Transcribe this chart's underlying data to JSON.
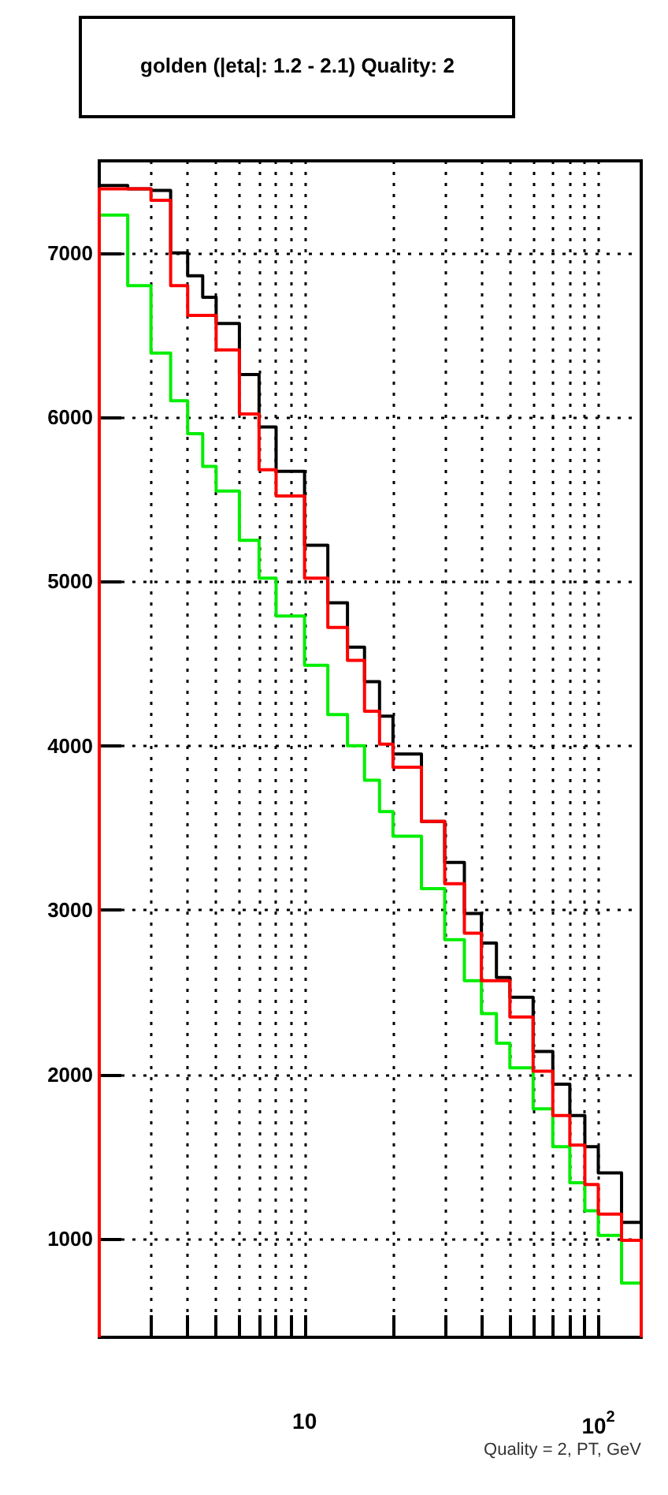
{
  "chart_data": {
    "type": "histogram",
    "title": "golden (|eta|: 1.2 - 2.1) Quality: 2",
    "xlabel": "Quality = 2, PT, GeV",
    "bins": [
      2,
      2.5,
      3,
      3.5,
      4,
      4.5,
      5,
      6,
      7,
      8,
      10,
      12,
      14,
      16,
      18,
      20,
      25,
      30,
      35,
      40,
      45,
      50,
      60,
      70,
      80,
      90,
      100,
      120,
      140
    ],
    "series": [
      {
        "color": "#000000",
        "values": [
          7410,
          7390,
          7380,
          7000,
          6860,
          6730,
          6570,
          6260,
          5940,
          5670,
          5220,
          4870,
          4600,
          4390,
          4180,
          3950,
          3540,
          3290,
          2980,
          2800,
          2590,
          2470,
          2140,
          1940,
          1750,
          1560,
          1400,
          1100
        ]
      },
      {
        "color": "#00ee00",
        "values": [
          7230,
          6800,
          6390,
          6100,
          5900,
          5700,
          5550,
          5250,
          5020,
          4790,
          4490,
          4190,
          4000,
          3790,
          3600,
          3450,
          3130,
          2820,
          2570,
          2370,
          2190,
          2040,
          1790,
          1560,
          1340,
          1170,
          1020,
          730
        ]
      },
      {
        "color": "#ff0000",
        "values": [
          7390,
          7390,
          7320,
          6800,
          6620,
          6620,
          6410,
          6020,
          5680,
          5520,
          5020,
          4720,
          4520,
          4210,
          4010,
          3870,
          3540,
          3160,
          2860,
          2570,
          2570,
          2350,
          2020,
          1750,
          1570,
          1330,
          1150,
          990
        ]
      }
    ],
    "log": "x",
    "xlim": [
      2,
      140
    ],
    "ylim": [
      400,
      7560
    ],
    "xticks": [
      {
        "value": 3,
        "label": null
      },
      {
        "value": 4,
        "label": null
      },
      {
        "value": 5,
        "label": null
      },
      {
        "value": 6,
        "label": null
      },
      {
        "value": 7,
        "label": null
      },
      {
        "value": 8,
        "label": null
      },
      {
        "value": 9,
        "label": null
      },
      {
        "value": 10,
        "label": "10"
      },
      {
        "value": 20,
        "label": null
      },
      {
        "value": 30,
        "label": null
      },
      {
        "value": 40,
        "label": null
      },
      {
        "value": 50,
        "label": null
      },
      {
        "value": 60,
        "label": null
      },
      {
        "value": 70,
        "label": null
      },
      {
        "value": 80,
        "label": null
      },
      {
        "value": 90,
        "label": null
      },
      {
        "value": 100,
        "label": "10$^{2}$"
      }
    ],
    "yticks": [
      1000,
      2000,
      3000,
      4000,
      5000,
      6000,
      7000
    ],
    "grid": true
  }
}
